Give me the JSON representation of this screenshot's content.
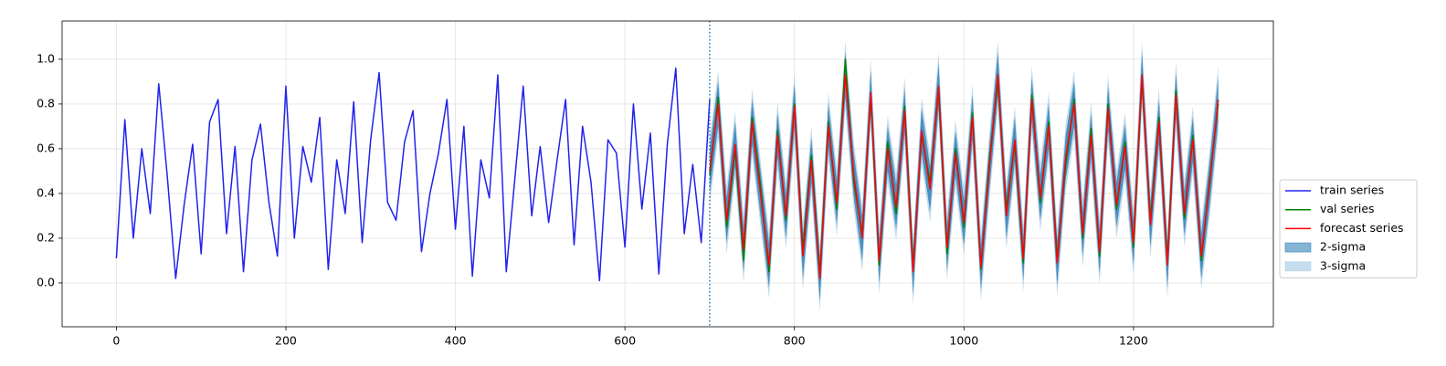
{
  "chart_data": {
    "type": "line",
    "xlim": [
      -64,
      1365
    ],
    "ylim": [
      -0.196,
      1.171
    ],
    "xticks": [
      0,
      200,
      400,
      600,
      800,
      1000,
      1200
    ],
    "yticks": [
      {
        "value": 0,
        "label": "0.0"
      },
      {
        "value": 0.2,
        "label": "0.2"
      },
      {
        "value": 0.4,
        "label": "0.4"
      },
      {
        "value": 0.6,
        "label": "0.6"
      },
      {
        "value": 0.8,
        "label": "0.8"
      },
      {
        "value": 1,
        "label": "1.0"
      }
    ],
    "grid": true,
    "legend": "right",
    "vline": {
      "x": 700,
      "color": "#1f77b4"
    },
    "series": [
      {
        "name": "train series",
        "color": "#2222ee",
        "x": [
          0,
          10,
          20,
          30,
          40,
          50,
          60,
          70,
          80,
          90,
          100,
          110,
          120,
          130,
          140,
          150,
          160,
          170,
          180,
          190,
          200,
          210,
          220,
          230,
          240,
          250,
          260,
          270,
          280,
          290,
          300,
          310,
          320,
          330,
          340,
          350,
          360,
          370,
          380,
          390,
          400,
          410,
          420,
          430,
          440,
          450,
          460,
          470,
          480,
          490,
          500,
          510,
          520,
          530,
          540,
          550,
          560,
          570,
          580,
          590,
          600,
          610,
          620,
          630,
          640,
          650,
          660,
          670,
          680,
          690,
          700
        ],
        "values": [
          0.11,
          0.73,
          0.2,
          0.6,
          0.31,
          0.89,
          0.48,
          0.02,
          0.35,
          0.62,
          0.13,
          0.72,
          0.82,
          0.22,
          0.61,
          0.05,
          0.55,
          0.71,
          0.36,
          0.12,
          0.88,
          0.2,
          0.61,
          0.45,
          0.74,
          0.06,
          0.55,
          0.31,
          0.81,
          0.18,
          0.64,
          0.94,
          0.36,
          0.28,
          0.63,
          0.77,
          0.14,
          0.4,
          0.58,
          0.82,
          0.24,
          0.7,
          0.03,
          0.55,
          0.38,
          0.93,
          0.05,
          0.46,
          0.88,
          0.3,
          0.61,
          0.27,
          0.55,
          0.82,
          0.17,
          0.7,
          0.45,
          0.01,
          0.64,
          0.58,
          0.16,
          0.8,
          0.33,
          0.67,
          0.04,
          0.62,
          0.96,
          0.22,
          0.53,
          0.18,
          0.82
        ]
      },
      {
        "name": "val series",
        "color": "#008000",
        "x": [
          700,
          710,
          720,
          730,
          740,
          750,
          760,
          770,
          780,
          790,
          800,
          810,
          820,
          830,
          840,
          850,
          860,
          870,
          880,
          890,
          900,
          910,
          920,
          930,
          940,
          950,
          960,
          970,
          980,
          990,
          1000,
          1010,
          1020,
          1030,
          1040,
          1050,
          1060,
          1070,
          1080,
          1090,
          1100,
          1110,
          1120,
          1130,
          1140,
          1150,
          1160,
          1170,
          1180,
          1190,
          1200,
          1210,
          1220,
          1230,
          1240,
          1250,
          1260,
          1270,
          1280,
          1290,
          1300
        ],
        "values": [
          0.48,
          0.83,
          0.25,
          0.6,
          0.1,
          0.74,
          0.43,
          0.05,
          0.68,
          0.28,
          0.8,
          0.15,
          0.57,
          0.04,
          0.72,
          0.33,
          1.0,
          0.45,
          0.22,
          0.83,
          0.08,
          0.63,
          0.31,
          0.79,
          0.07,
          0.66,
          0.45,
          0.86,
          0.13,
          0.6,
          0.25,
          0.76,
          0.06,
          0.55,
          0.9,
          0.33,
          0.62,
          0.09,
          0.84,
          0.36,
          0.72,
          0.11,
          0.53,
          0.82,
          0.2,
          0.69,
          0.12,
          0.8,
          0.33,
          0.63,
          0.16,
          0.91,
          0.28,
          0.74,
          0.1,
          0.86,
          0.29,
          0.66,
          0.1,
          0.47,
          0.8
        ]
      },
      {
        "name": "forecast series",
        "color": "#ff0000",
        "x": [
          700,
          710,
          720,
          730,
          740,
          750,
          760,
          770,
          780,
          790,
          800,
          810,
          820,
          830,
          840,
          850,
          860,
          870,
          880,
          890,
          900,
          910,
          920,
          930,
          940,
          950,
          960,
          970,
          980,
          990,
          1000,
          1010,
          1020,
          1030,
          1040,
          1050,
          1060,
          1070,
          1080,
          1090,
          1100,
          1110,
          1120,
          1130,
          1140,
          1150,
          1160,
          1170,
          1180,
          1190,
          1200,
          1210,
          1220,
          1230,
          1240,
          1250,
          1260,
          1270,
          1280,
          1290,
          1300
        ],
        "values": [
          0.5,
          0.8,
          0.28,
          0.62,
          0.15,
          0.72,
          0.4,
          0.08,
          0.66,
          0.3,
          0.79,
          0.12,
          0.55,
          0.02,
          0.7,
          0.36,
          0.93,
          0.48,
          0.2,
          0.85,
          0.1,
          0.6,
          0.34,
          0.77,
          0.05,
          0.68,
          0.42,
          0.88,
          0.16,
          0.58,
          0.27,
          0.74,
          0.07,
          0.52,
          0.93,
          0.3,
          0.64,
          0.11,
          0.82,
          0.38,
          0.7,
          0.09,
          0.56,
          0.8,
          0.22,
          0.66,
          0.14,
          0.78,
          0.35,
          0.61,
          0.18,
          0.93,
          0.26,
          0.72,
          0.08,
          0.84,
          0.31,
          0.64,
          0.12,
          0.45,
          0.82
        ]
      }
    ],
    "bands": [
      {
        "name": "2-sigma",
        "color": "#1f77b4",
        "upper": [
          0.6,
          0.9,
          0.38,
          0.72,
          0.25,
          0.82,
          0.5,
          0.18,
          0.76,
          0.4,
          0.89,
          0.22,
          0.65,
          0.12,
          0.8,
          0.46,
          1.03,
          0.58,
          0.3,
          0.95,
          0.2,
          0.7,
          0.44,
          0.87,
          0.15,
          0.78,
          0.52,
          0.98,
          0.26,
          0.68,
          0.37,
          0.84,
          0.17,
          0.62,
          1.03,
          0.4,
          0.74,
          0.21,
          0.92,
          0.48,
          0.8,
          0.19,
          0.66,
          0.9,
          0.32,
          0.76,
          0.24,
          0.88,
          0.45,
          0.71,
          0.28,
          1.03,
          0.36,
          0.82,
          0.18,
          0.94,
          0.41,
          0.74,
          0.22,
          0.55,
          0.92
        ],
        "lower": [
          0.4,
          0.7,
          0.18,
          0.52,
          0.05,
          0.62,
          0.3,
          -0.02,
          0.56,
          0.2,
          0.69,
          0.02,
          0.45,
          -0.08,
          0.6,
          0.26,
          0.83,
          0.38,
          0.1,
          0.75,
          0.0,
          0.5,
          0.24,
          0.67,
          -0.05,
          0.58,
          0.32,
          0.78,
          0.06,
          0.48,
          0.17,
          0.64,
          -0.03,
          0.42,
          0.83,
          0.2,
          0.54,
          0.01,
          0.72,
          0.28,
          0.6,
          -0.01,
          0.46,
          0.7,
          0.12,
          0.56,
          0.04,
          0.68,
          0.25,
          0.51,
          0.08,
          0.83,
          0.16,
          0.62,
          -0.02,
          0.74,
          0.21,
          0.54,
          0.02,
          0.35,
          0.72
        ]
      },
      {
        "name": "3-sigma",
        "color": "#a6cbe3",
        "upper": [
          0.65,
          0.95,
          0.43,
          0.77,
          0.3,
          0.87,
          0.55,
          0.23,
          0.81,
          0.45,
          0.94,
          0.27,
          0.7,
          0.17,
          0.85,
          0.51,
          1.08,
          0.63,
          0.35,
          1.0,
          0.25,
          0.75,
          0.49,
          0.92,
          0.2,
          0.83,
          0.57,
          1.03,
          0.31,
          0.73,
          0.42,
          0.89,
          0.22,
          0.67,
          1.08,
          0.45,
          0.79,
          0.26,
          0.97,
          0.53,
          0.85,
          0.24,
          0.71,
          0.95,
          0.37,
          0.81,
          0.29,
          0.93,
          0.5,
          0.76,
          0.33,
          1.08,
          0.41,
          0.87,
          0.23,
          0.99,
          0.46,
          0.79,
          0.27,
          0.6,
          0.97
        ],
        "lower": [
          0.35,
          0.65,
          0.13,
          0.47,
          0.0,
          0.57,
          0.25,
          -0.07,
          0.51,
          0.15,
          0.64,
          -0.03,
          0.4,
          -0.13,
          0.55,
          0.21,
          0.78,
          0.33,
          0.05,
          0.7,
          -0.05,
          0.45,
          0.19,
          0.62,
          -0.1,
          0.53,
          0.27,
          0.73,
          0.01,
          0.43,
          0.12,
          0.59,
          -0.08,
          0.37,
          0.78,
          0.15,
          0.49,
          -0.04,
          0.67,
          0.23,
          0.55,
          -0.06,
          0.41,
          0.65,
          0.07,
          0.51,
          -0.01,
          0.63,
          0.2,
          0.46,
          0.03,
          0.78,
          0.11,
          0.57,
          -0.07,
          0.69,
          0.16,
          0.49,
          -0.03,
          0.3,
          0.67
        ]
      }
    ]
  }
}
